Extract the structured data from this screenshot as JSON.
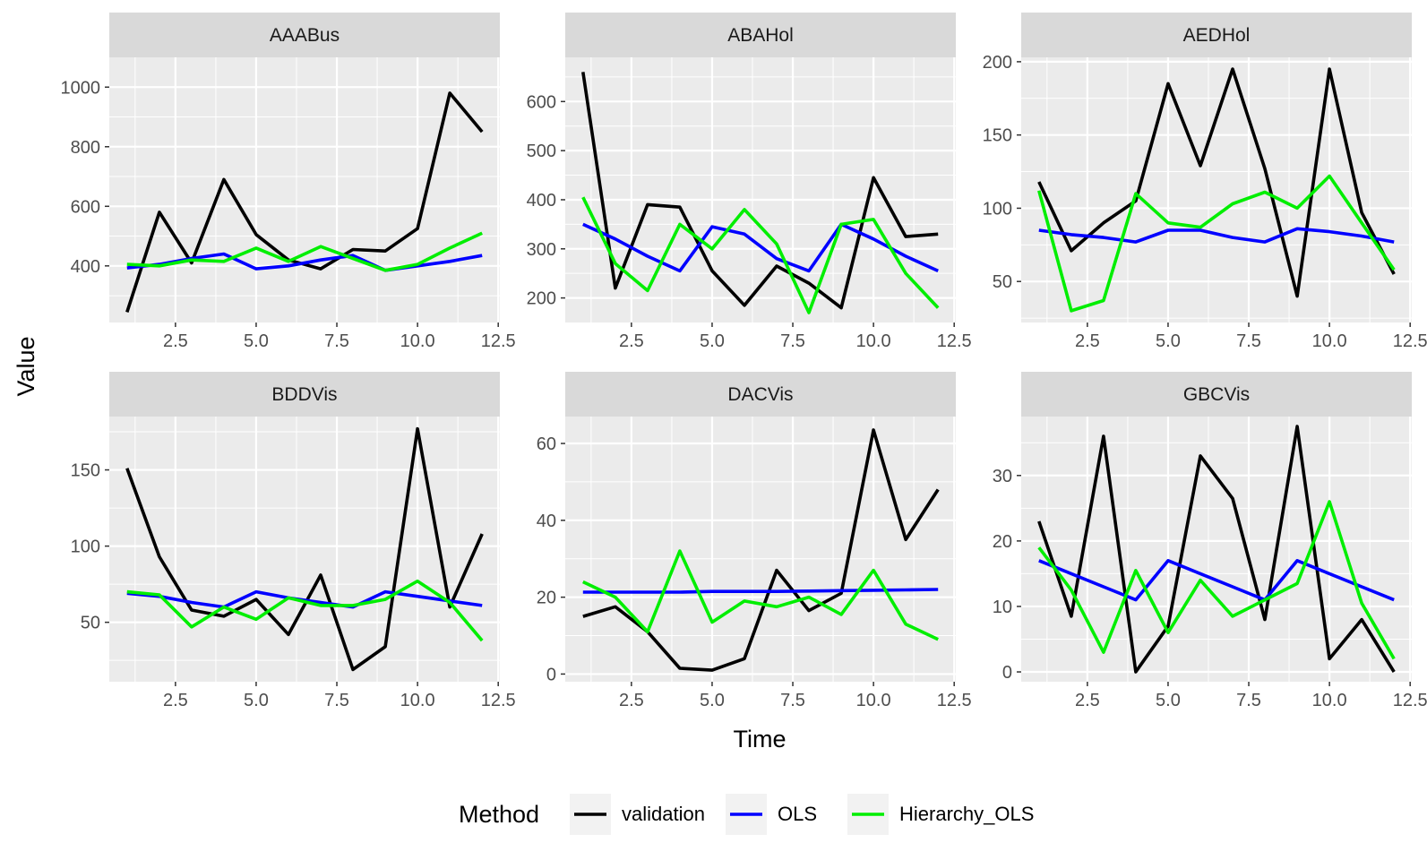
{
  "chart_data": {
    "type": "line",
    "xlabel": "Time",
    "ylabel": "Value",
    "legend": {
      "title": "Method",
      "placement": "bottom",
      "entries": [
        {
          "name": "validation",
          "color": "#000000"
        },
        {
          "name": "OLS",
          "color": "#0000ff"
        },
        {
          "name": "Hierarchy_OLS",
          "color": "#00ee00"
        }
      ]
    },
    "x": [
      1,
      2,
      3,
      4,
      5,
      6,
      7,
      8,
      9,
      10,
      11,
      12
    ],
    "xticks": [
      2.5,
      5.0,
      7.5,
      10.0,
      12.5
    ],
    "xtick_labels": [
      "2.5",
      "5.0",
      "7.5",
      "10.0",
      "12.5"
    ],
    "xlim": [
      0.45,
      12.55
    ],
    "grid": true,
    "facets": [
      {
        "title": "AAABus",
        "ylim": [
          210,
          1100
        ],
        "yticks": [
          400,
          600,
          800,
          1000
        ],
        "ytick_labels": [
          "400",
          "600",
          "800",
          "1000"
        ],
        "series": [
          {
            "name": "validation",
            "values": [
              245,
              580,
              410,
              690,
              505,
              420,
              390,
              455,
              450,
              525,
              980,
              850
            ]
          },
          {
            "name": "OLS",
            "values": [
              393,
              405,
              425,
              440,
              390,
              400,
              420,
              435,
              385,
              400,
              415,
              435
            ]
          },
          {
            "name": "Hierarchy_OLS",
            "values": [
              405,
              400,
              420,
              415,
              460,
              415,
              465,
              425,
              385,
              405,
              460,
              510
            ]
          }
        ]
      },
      {
        "title": "ABAHol",
        "ylim": [
          150,
          690
        ],
        "yticks": [
          200,
          300,
          400,
          500,
          600
        ],
        "ytick_labels": [
          "200",
          "300",
          "400",
          "500",
          "600"
        ],
        "series": [
          {
            "name": "validation",
            "values": [
              660,
              220,
              390,
              385,
              255,
              185,
              265,
              230,
              180,
              445,
              325,
              330
            ]
          },
          {
            "name": "OLS",
            "values": [
              350,
              320,
              285,
              255,
              345,
              330,
              280,
              255,
              350,
              320,
              285,
              255
            ]
          },
          {
            "name": "Hierarchy_OLS",
            "values": [
              405,
              270,
              215,
              350,
              300,
              380,
              310,
              170,
              350,
              360,
              250,
              180
            ]
          }
        ]
      },
      {
        "title": "AEDHol",
        "ylim": [
          22,
          203
        ],
        "yticks": [
          50,
          100,
          150,
          200
        ],
        "ytick_labels": [
          "50",
          "100",
          "150",
          "200"
        ],
        "series": [
          {
            "name": "validation",
            "values": [
              118,
              71,
              90,
              105,
              185,
              129,
              195,
              127,
              40,
              195,
              97,
              55
            ]
          },
          {
            "name": "OLS",
            "values": [
              85,
              82,
              80,
              77,
              85,
              85,
              80,
              77,
              86,
              84,
              81,
              77
            ]
          },
          {
            "name": "Hierarchy_OLS",
            "values": [
              112,
              30,
              37,
              110,
              90,
              87,
              103,
              111,
              100,
              122,
              90,
              58
            ]
          }
        ]
      },
      {
        "title": "BDDVis",
        "ylim": [
          11,
          185
        ],
        "yticks": [
          50,
          100,
          150
        ],
        "ytick_labels": [
          "50",
          "100",
          "150"
        ],
        "series": [
          {
            "name": "validation",
            "values": [
              151,
              93,
              58,
              54,
              65,
              42,
              81,
              19,
              34,
              177,
              60,
              108
            ]
          },
          {
            "name": "OLS",
            "values": [
              69,
              67,
              63,
              60,
              70,
              66,
              63,
              60,
              70,
              67,
              64,
              61
            ]
          },
          {
            "name": "Hierarchy_OLS",
            "values": [
              70,
              68,
              47,
              60,
              52,
              66,
              61,
              61,
              65,
              77,
              63,
              38
            ]
          }
        ]
      },
      {
        "title": "DACVis",
        "ylim": [
          -2,
          67
        ],
        "yticks": [
          0,
          20,
          40,
          60
        ],
        "ytick_labels": [
          "0",
          "20",
          "40",
          "60"
        ],
        "series": [
          {
            "name": "validation",
            "values": [
              15,
              17.5,
              11,
              1.5,
              1,
              4,
              27,
              16.5,
              21,
              63.5,
              35,
              48
            ]
          },
          {
            "name": "OLS",
            "values": [
              21.3,
              21.3,
              21.3,
              21.3,
              21.5,
              21.5,
              21.5,
              21.6,
              21.7,
              21.8,
              21.9,
              22
            ]
          },
          {
            "name": "Hierarchy_OLS",
            "values": [
              24,
              20,
              11,
              32,
              13.5,
              19,
              17.5,
              20,
              15.5,
              27,
              13,
              9
            ]
          }
        ]
      },
      {
        "title": "GBCVis",
        "ylim": [
          -1.5,
          39
        ],
        "yticks": [
          0,
          10,
          20,
          30
        ],
        "ytick_labels": [
          "0",
          "10",
          "20",
          "30"
        ],
        "series": [
          {
            "name": "validation",
            "values": [
              23,
              8.5,
              36,
              0,
              7,
              33,
              26.5,
              8,
              37.5,
              2,
              8,
              0
            ]
          },
          {
            "name": "OLS",
            "values": [
              17,
              15,
              13,
              11,
              17,
              15,
              13,
              11,
              17,
              15,
              13,
              11
            ]
          },
          {
            "name": "Hierarchy_OLS",
            "values": [
              19,
              12.5,
              3,
              15.5,
              6,
              14,
              8.5,
              11,
              13.5,
              26,
              10.5,
              2
            ]
          }
        ]
      }
    ]
  }
}
